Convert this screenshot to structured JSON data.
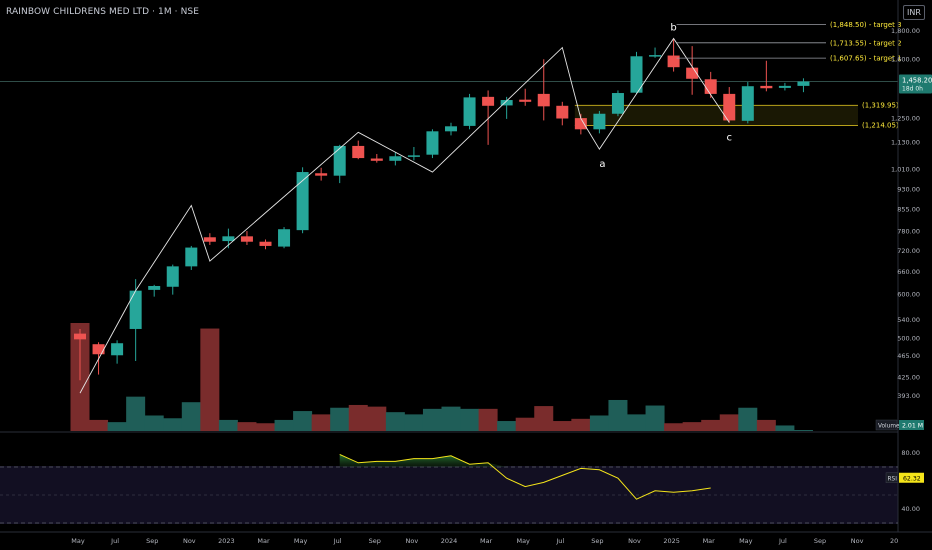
{
  "header": {
    "title": "RAINBOW CHILDRENS MED LTD · 1M · NSE",
    "currency": "INR"
  },
  "chart_data": {
    "type": "candlestick",
    "x_labels": [
      "May",
      "Jul",
      "Sep",
      "Nov",
      "2023",
      "Mar",
      "May",
      "Jul",
      "Sep",
      "Nov",
      "2024",
      "Mar",
      "May",
      "Jul",
      "Sep",
      "Nov",
      "2025",
      "Mar",
      "May",
      "Jul",
      "Sep",
      "Nov",
      "20"
    ],
    "price_ticks": [
      "1,800.00",
      "1,600.00",
      "1,250.00",
      "1,130.00",
      "1,010.00",
      "930.00",
      "855.00",
      "780.00",
      "720.00",
      "660.00",
      "600.00",
      "540.00",
      "500.00",
      "465.00",
      "425.00",
      "393.00"
    ],
    "candles": [
      {
        "o": 510,
        "h": 520,
        "l": 420,
        "c": 498
      },
      {
        "o": 488,
        "h": 492,
        "l": 430,
        "c": 468
      },
      {
        "o": 466,
        "h": 496,
        "l": 450,
        "c": 490
      },
      {
        "o": 520,
        "h": 640,
        "l": 455,
        "c": 610
      },
      {
        "o": 612,
        "h": 625,
        "l": 595,
        "c": 622
      },
      {
        "o": 620,
        "h": 680,
        "l": 600,
        "c": 675
      },
      {
        "o": 675,
        "h": 735,
        "l": 665,
        "c": 730
      },
      {
        "o": 762,
        "h": 775,
        "l": 738,
        "c": 748
      },
      {
        "o": 750,
        "h": 790,
        "l": 728,
        "c": 765
      },
      {
        "o": 765,
        "h": 782,
        "l": 738,
        "c": 748
      },
      {
        "o": 748,
        "h": 755,
        "l": 725,
        "c": 735
      },
      {
        "o": 733,
        "h": 795,
        "l": 728,
        "c": 788
      },
      {
        "o": 785,
        "h": 1020,
        "l": 775,
        "c": 1000
      },
      {
        "o": 995,
        "h": 1018,
        "l": 965,
        "c": 985
      },
      {
        "o": 985,
        "h": 1120,
        "l": 955,
        "c": 1115
      },
      {
        "o": 1115,
        "h": 1140,
        "l": 1055,
        "c": 1060
      },
      {
        "o": 1058,
        "h": 1078,
        "l": 1040,
        "c": 1048
      },
      {
        "o": 1048,
        "h": 1085,
        "l": 1028,
        "c": 1068
      },
      {
        "o": 1068,
        "h": 1110,
        "l": 1050,
        "c": 1072
      },
      {
        "o": 1075,
        "h": 1195,
        "l": 1060,
        "c": 1185
      },
      {
        "o": 1185,
        "h": 1228,
        "l": 1165,
        "c": 1210
      },
      {
        "o": 1212,
        "h": 1385,
        "l": 1195,
        "c": 1365
      },
      {
        "o": 1368,
        "h": 1405,
        "l": 1120,
        "c": 1318
      },
      {
        "o": 1320,
        "h": 1368,
        "l": 1248,
        "c": 1350
      },
      {
        "o": 1352,
        "h": 1415,
        "l": 1318,
        "c": 1340
      },
      {
        "o": 1385,
        "h": 1600,
        "l": 1240,
        "c": 1315
      },
      {
        "o": 1318,
        "h": 1340,
        "l": 1215,
        "c": 1250
      },
      {
        "o": 1252,
        "h": 1275,
        "l": 1170,
        "c": 1195
      },
      {
        "o": 1195,
        "h": 1290,
        "l": 1175,
        "c": 1275
      },
      {
        "o": 1275,
        "h": 1405,
        "l": 1262,
        "c": 1390
      },
      {
        "o": 1392,
        "h": 1650,
        "l": 1385,
        "c": 1620
      },
      {
        "o": 1620,
        "h": 1680,
        "l": 1610,
        "c": 1628
      },
      {
        "o": 1625,
        "h": 1740,
        "l": 1520,
        "c": 1548
      },
      {
        "o": 1545,
        "h": 1690,
        "l": 1380,
        "c": 1475
      },
      {
        "o": 1472,
        "h": 1518,
        "l": 1362,
        "c": 1385
      },
      {
        "o": 1385,
        "h": 1425,
        "l": 1228,
        "c": 1240
      },
      {
        "o": 1238,
        "h": 1455,
        "l": 1225,
        "c": 1430
      },
      {
        "o": 1432,
        "h": 1590,
        "l": 1400,
        "c": 1418
      },
      {
        "o": 1420,
        "h": 1450,
        "l": 1405,
        "c": 1432
      },
      {
        "o": 1432,
        "h": 1478,
        "l": 1395,
        "c": 1458
      }
    ],
    "volume": [
      1.95,
      0.2,
      0.16,
      0.62,
      0.28,
      0.23,
      0.52,
      1.85,
      0.2,
      0.16,
      0.14,
      0.2,
      0.36,
      0.3,
      0.42,
      0.47,
      0.44,
      0.34,
      0.3,
      0.4,
      0.44,
      0.4,
      0.4,
      0.18,
      0.24,
      0.45,
      0.18,
      0.22,
      0.28,
      0.56,
      0.3,
      0.46,
      0.14,
      0.16,
      0.2,
      0.3,
      0.42,
      0.2,
      0.1,
      0.01
    ],
    "wave_path": [
      [
        0,
        398
      ],
      [
        3,
        610
      ],
      [
        6,
        870
      ],
      [
        7,
        690
      ],
      [
        15,
        1180
      ],
      [
        19,
        1000
      ],
      [
        26,
        1680
      ],
      [
        27,
        1250
      ],
      [
        28,
        1100
      ],
      [
        32,
        1745
      ],
      [
        34,
        1380
      ],
      [
        35,
        1230
      ]
    ],
    "wave_labels": [
      {
        "text": "a",
        "i": 28
      },
      {
        "text": "b",
        "i": 32
      },
      {
        "text": "c",
        "i": 35
      }
    ],
    "targets": [
      {
        "label": "(1,848.50) - target 3",
        "value": 1848.5
      },
      {
        "label": "(1,713.55) - target 2",
        "value": 1713.55
      },
      {
        "label": "(1,607.65) - target 1",
        "value": 1607.65
      }
    ],
    "support_zone": {
      "upper_label": "(1,319.95)",
      "upper": 1319.95,
      "lower_label": "(1,214.05)",
      "lower": 1214.05
    },
    "last_price": {
      "value": "1,458.20",
      "countdown": "18d 0h"
    },
    "volume_label": {
      "name": "Volume",
      "value": "2.01 M"
    },
    "rsi": {
      "name": "RSI",
      "value": "62.32",
      "ticks": [
        "80.00",
        "40.00"
      ],
      "start_index": 14,
      "values": [
        79,
        73,
        74,
        74,
        76,
        76,
        78,
        72,
        73,
        62,
        56,
        59,
        64,
        69,
        68,
        62,
        47,
        53,
        52,
        53,
        55
      ]
    },
    "colors": {
      "up": "#26a69a",
      "down": "#ef5350",
      "wave": "#e6e6e6",
      "rsi": "#f5e51a",
      "zone": "#ffeb3b"
    }
  }
}
